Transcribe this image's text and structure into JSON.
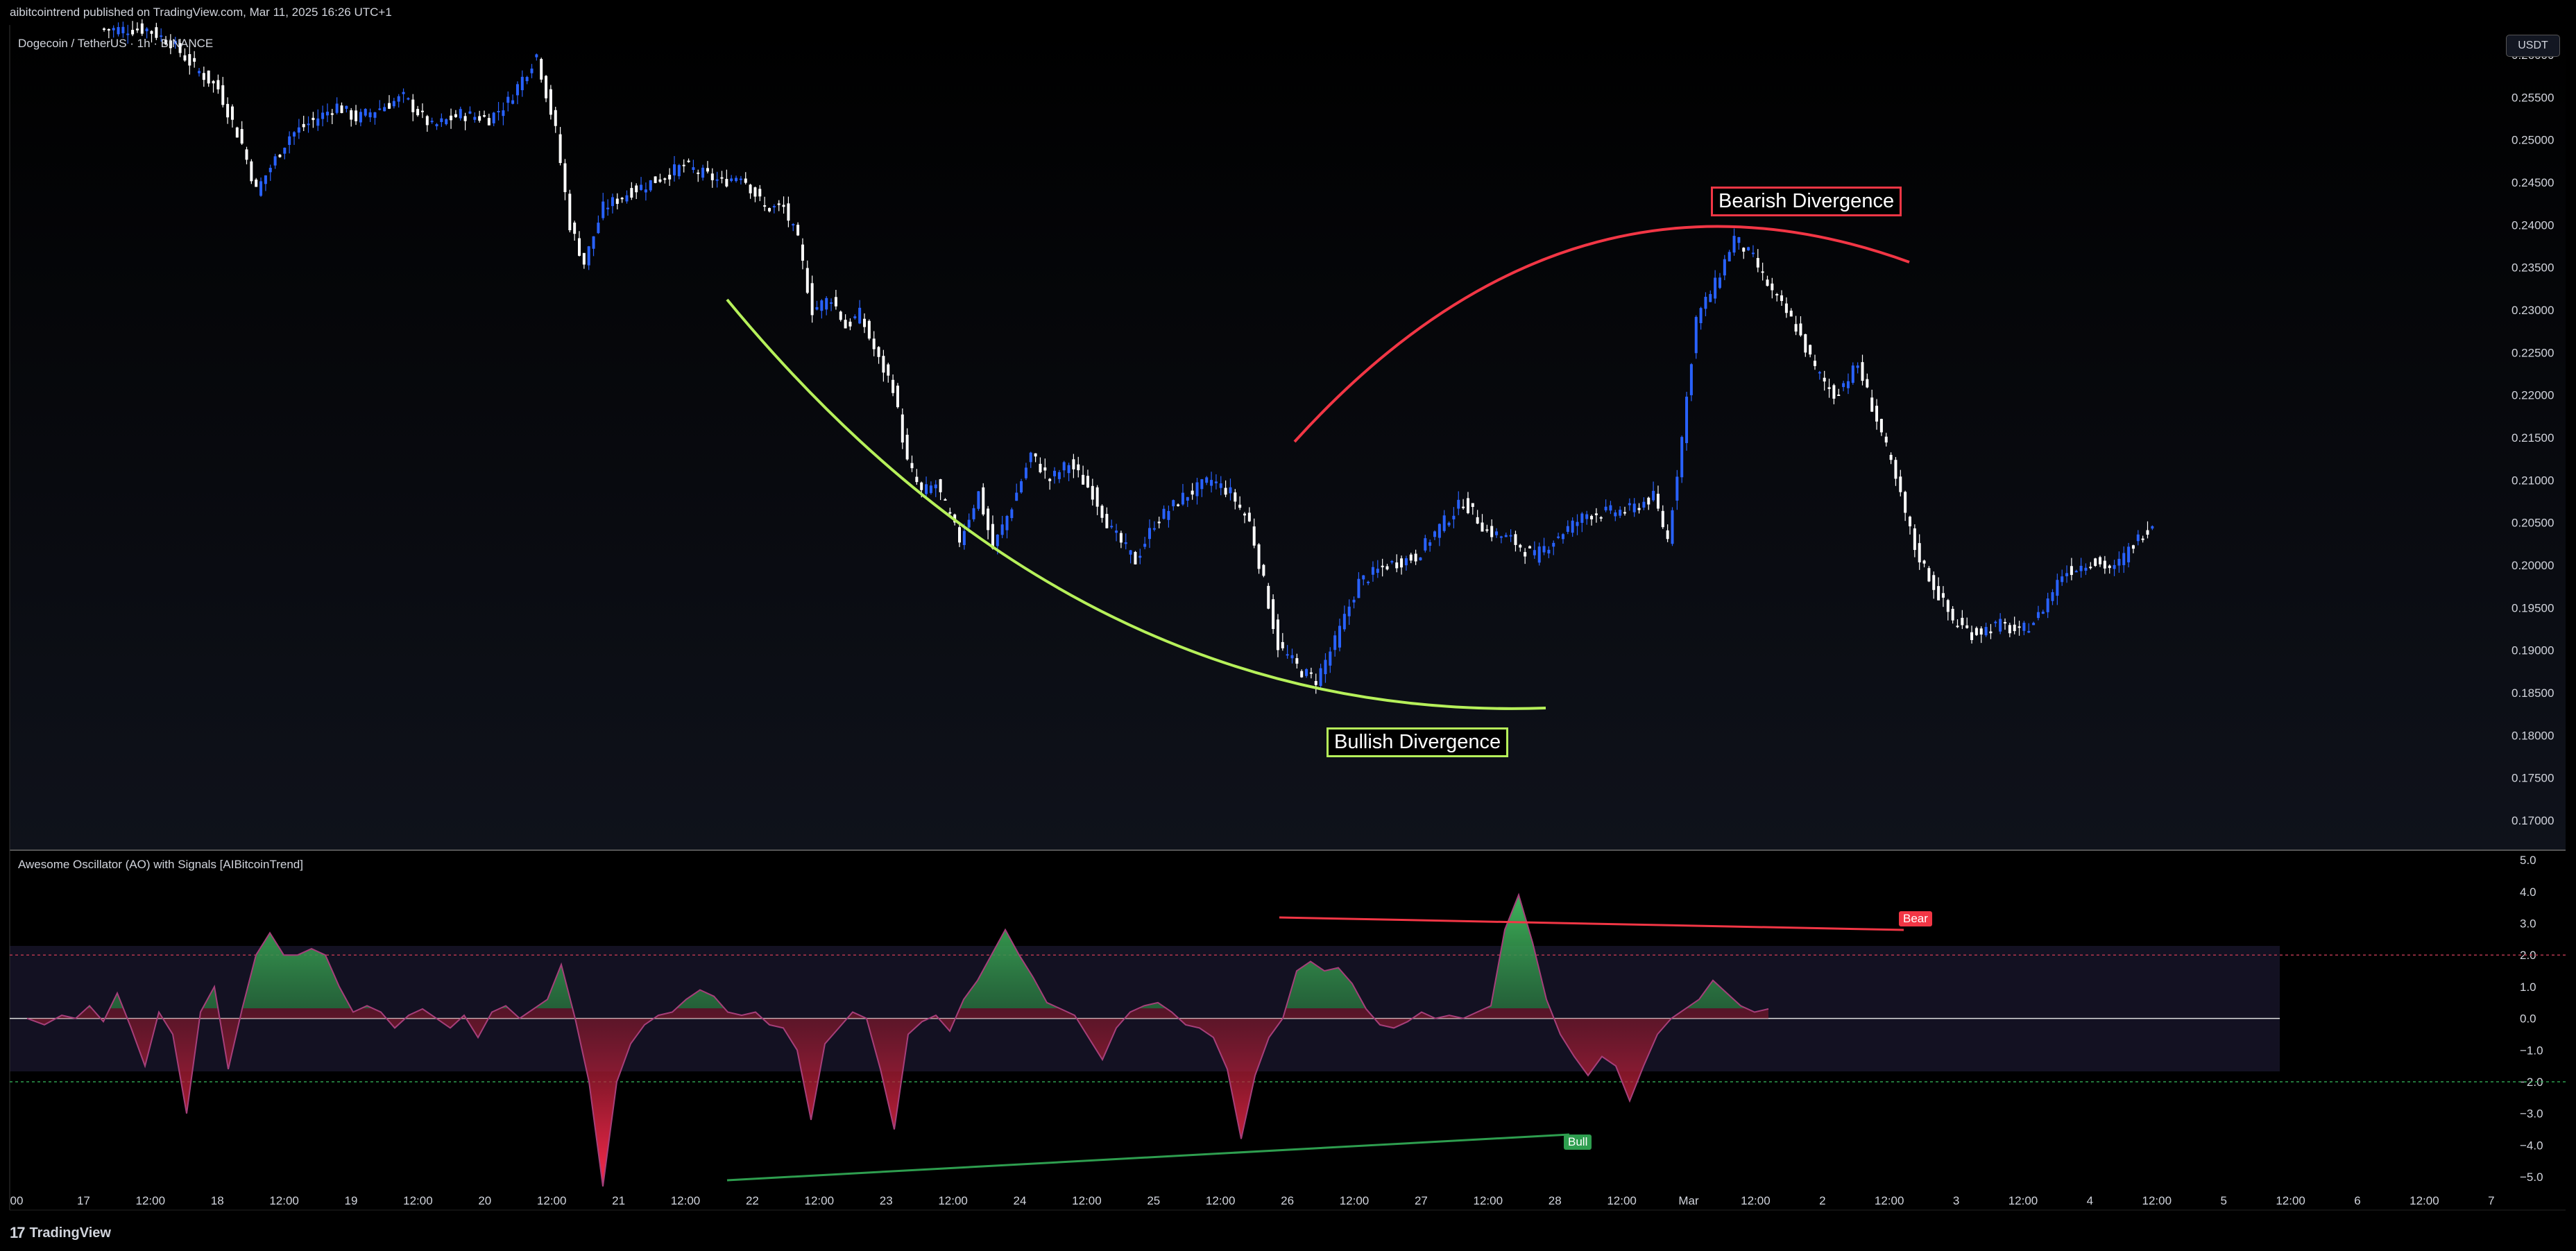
{
  "header": {
    "published": "aibitcointrend published on TradingView.com, Mar 11, 2025 16:26 UTC+1",
    "symbol": "Dogecoin / TetherUS · 1h · BINANCE",
    "currency_button": "USDT",
    "logo_text": "TradingView",
    "logo_mark": "17"
  },
  "annotations": {
    "bearish": "Bearish Divergence",
    "bullish": "Bullish Divergence"
  },
  "indicator": {
    "title": "Awesome Oscillator (AO) with Signals [AIBitcoinTrend]",
    "bear_label": "Bear",
    "bull_label": "Bull"
  },
  "colors": {
    "up_candle": "#2962ff",
    "down_candle": "#ffffff",
    "ao_positive": "#2e9e4f",
    "ao_negative": "#f23645",
    "bearish_curve": "#f23645",
    "bullish_curve": "#b6f05a"
  },
  "chart_data": [
    {
      "type": "candlestick",
      "title": "Dogecoin / TetherUS · 1h · BINANCE",
      "y_axis_ticks": [
        "0.26000",
        "0.25500",
        "0.25000",
        "0.24500",
        "0.24000",
        "0.23500",
        "0.23000",
        "0.22500",
        "0.22000",
        "0.21500",
        "0.21000",
        "0.20500",
        "0.20000",
        "0.19500",
        "0.19000",
        "0.18500",
        "0.18000",
        "0.17500",
        "0.17000"
      ],
      "ylim": [
        0.1665,
        0.2635
      ],
      "x_axis_ticks": [
        "00",
        "17",
        "12:00",
        "18",
        "12:00",
        "19",
        "12:00",
        "20",
        "12:00",
        "21",
        "12:00",
        "22",
        "12:00",
        "23",
        "12:00",
        "24",
        "12:00",
        "25",
        "12:00",
        "26",
        "12:00",
        "27",
        "12:00",
        "28",
        "12:00",
        "Mar",
        "12:00",
        "2",
        "12:00",
        "3",
        "12:00",
        "4",
        "12:00",
        "5",
        "12:00",
        "6",
        "12:00",
        "7"
      ],
      "price_path": [
        [
          0.263,
          10
        ],
        [
          0.2615,
          5
        ],
        [
          0.2585,
          5
        ],
        [
          0.256,
          5
        ],
        [
          0.2495,
          5
        ],
        [
          0.244,
          3
        ],
        [
          0.2505,
          7
        ],
        [
          0.254,
          10
        ],
        [
          0.2525,
          4
        ],
        [
          0.255,
          10
        ],
        [
          0.2515,
          6
        ],
        [
          0.253,
          6
        ],
        [
          0.2525,
          6
        ],
        [
          0.2545,
          4
        ],
        [
          0.26,
          6
        ],
        [
          0.251,
          4
        ],
        [
          0.24,
          3
        ],
        [
          0.2355,
          3
        ],
        [
          0.242,
          4
        ],
        [
          0.244,
          6
        ],
        [
          0.2455,
          6
        ],
        [
          0.247,
          5
        ],
        [
          0.245,
          8
        ],
        [
          0.246,
          4
        ],
        [
          0.242,
          5
        ],
        [
          0.242,
          4
        ],
        [
          0.238,
          3
        ],
        [
          0.23,
          3
        ],
        [
          0.2315,
          4
        ],
        [
          0.228,
          3
        ],
        [
          0.2295,
          3
        ],
        [
          0.224,
          4
        ],
        [
          0.221,
          3
        ],
        [
          0.212,
          3
        ],
        [
          0.2085,
          3
        ],
        [
          0.2095,
          3
        ],
        [
          0.203,
          5
        ],
        [
          0.2085,
          4
        ],
        [
          0.202,
          3
        ],
        [
          0.207,
          4
        ],
        [
          0.213,
          4
        ],
        [
          0.21,
          4
        ],
        [
          0.212,
          4
        ],
        [
          0.2085,
          5
        ],
        [
          0.204,
          4
        ],
        [
          0.2005,
          5
        ],
        [
          0.205,
          4
        ],
        [
          0.208,
          6
        ],
        [
          0.21,
          6
        ],
        [
          0.2085,
          4
        ],
        [
          0.205,
          4
        ],
        [
          0.198,
          3
        ],
        [
          0.1905,
          3
        ],
        [
          0.1875,
          5
        ],
        [
          0.1865,
          3
        ],
        [
          0.191,
          4
        ],
        [
          0.198,
          5
        ],
        [
          0.2,
          6
        ],
        [
          0.201,
          6
        ],
        [
          0.2045,
          5
        ],
        [
          0.2075,
          5
        ],
        [
          0.204,
          5
        ],
        [
          0.203,
          5
        ],
        [
          0.201,
          5
        ],
        [
          0.2035,
          5
        ],
        [
          0.206,
          6
        ],
        [
          0.2065,
          9
        ],
        [
          0.208,
          5
        ],
        [
          0.203,
          3
        ],
        [
          0.215,
          3
        ],
        [
          0.229,
          3
        ],
        [
          0.233,
          4
        ],
        [
          0.2385,
          4
        ],
        [
          0.236,
          4
        ],
        [
          0.232,
          4
        ],
        [
          0.228,
          5
        ],
        [
          0.223,
          4
        ],
        [
          0.22,
          4
        ],
        [
          0.2235,
          5
        ],
        [
          0.2155,
          5
        ],
        [
          0.208,
          4
        ],
        [
          0.202,
          3
        ],
        [
          0.1975,
          4
        ],
        [
          0.1935,
          4
        ],
        [
          0.192,
          4
        ],
        [
          0.193,
          6
        ],
        [
          0.192,
          4
        ],
        [
          0.194,
          4
        ],
        [
          0.199,
          5
        ],
        [
          0.2005,
          6
        ],
        [
          0.1995,
          5
        ],
        [
          0.2025,
          4
        ],
        [
          0.205,
          4
        ]
      ]
    },
    {
      "type": "area",
      "title": "Awesome Oscillator (AO) with Signals [AIBitcoinTrend]",
      "y_axis_ticks": [
        "5.0",
        "4.0",
        "3.0",
        "2.0",
        "1.0",
        "0.0",
        "−1.0",
        "−2.0",
        "−3.0",
        "−4.0",
        "−5.0"
      ],
      "ylim": [
        -5.5,
        5.2
      ],
      "upper_band": 2.0,
      "lower_band": -2.0,
      "ao_path": [
        [
          0.0,
          25
        ],
        [
          -0.2,
          25
        ],
        [
          0.1,
          25
        ],
        [
          0.0,
          20
        ],
        [
          0.4,
          20
        ],
        [
          -0.1,
          20
        ],
        [
          0.8,
          20
        ],
        [
          -0.3,
          20
        ],
        [
          -1.5,
          20
        ],
        [
          0.2,
          20
        ],
        [
          -0.5,
          20
        ],
        [
          -3.0,
          20
        ],
        [
          0.2,
          20
        ],
        [
          1.0,
          20
        ],
        [
          -1.6,
          20
        ],
        [
          0.3,
          20
        ],
        [
          2.0,
          20
        ],
        [
          2.7,
          20
        ],
        [
          2.0,
          20
        ],
        [
          2.0,
          20
        ],
        [
          2.2,
          20
        ],
        [
          2.0,
          20
        ],
        [
          1.0,
          20
        ],
        [
          0.2,
          20
        ],
        [
          0.4,
          20
        ],
        [
          0.2,
          20
        ],
        [
          -0.3,
          20
        ],
        [
          0.1,
          20
        ],
        [
          0.3,
          20
        ],
        [
          0.0,
          20
        ],
        [
          -0.3,
          20
        ],
        [
          0.1,
          20
        ],
        [
          -0.6,
          20
        ],
        [
          0.2,
          20
        ],
        [
          0.4,
          20
        ],
        [
          0.0,
          20
        ],
        [
          0.3,
          20
        ],
        [
          0.6,
          20
        ],
        [
          1.7,
          20
        ],
        [
          0.0,
          20
        ],
        [
          -2.0,
          20
        ],
        [
          -5.3,
          20
        ],
        [
          -2.0,
          20
        ],
        [
          -0.8,
          20
        ],
        [
          -0.2,
          20
        ],
        [
          0.1,
          20
        ],
        [
          0.2,
          20
        ],
        [
          0.6,
          20
        ],
        [
          0.9,
          20
        ],
        [
          0.7,
          20
        ],
        [
          0.2,
          20
        ],
        [
          0.1,
          20
        ],
        [
          0.2,
          20
        ],
        [
          -0.2,
          20
        ],
        [
          -0.3,
          20
        ],
        [
          -1.0,
          20
        ],
        [
          -3.2,
          20
        ],
        [
          -0.8,
          20
        ],
        [
          -0.3,
          20
        ],
        [
          0.2,
          20
        ],
        [
          0.0,
          20
        ],
        [
          -1.6,
          20
        ],
        [
          -3.5,
          20
        ],
        [
          -0.5,
          20
        ],
        [
          -0.1,
          20
        ],
        [
          0.1,
          20
        ],
        [
          -0.4,
          20
        ],
        [
          0.6,
          20
        ],
        [
          1.2,
          20
        ],
        [
          2.0,
          20
        ],
        [
          2.8,
          20
        ],
        [
          2.0,
          20
        ],
        [
          1.3,
          20
        ],
        [
          0.5,
          20
        ],
        [
          0.3,
          20
        ],
        [
          0.1,
          20
        ],
        [
          -0.6,
          20
        ],
        [
          -1.3,
          20
        ],
        [
          -0.3,
          20
        ],
        [
          0.2,
          20
        ],
        [
          0.4,
          20
        ],
        [
          0.5,
          20
        ],
        [
          0.2,
          20
        ],
        [
          -0.2,
          20
        ],
        [
          -0.3,
          20
        ],
        [
          -0.6,
          20
        ],
        [
          -1.6,
          20
        ],
        [
          -3.8,
          20
        ],
        [
          -1.8,
          20
        ],
        [
          -0.6,
          20
        ],
        [
          0.0,
          20
        ],
        [
          1.5,
          20
        ],
        [
          1.8,
          20
        ],
        [
          1.5,
          20
        ],
        [
          1.6,
          20
        ],
        [
          1.1,
          20
        ],
        [
          0.3,
          20
        ],
        [
          -0.2,
          20
        ],
        [
          -0.3,
          20
        ],
        [
          -0.1,
          20
        ],
        [
          0.2,
          20
        ],
        [
          0.0,
          20
        ],
        [
          0.1,
          20
        ],
        [
          0.0,
          20
        ],
        [
          0.2,
          20
        ],
        [
          0.4,
          20
        ],
        [
          2.8,
          20
        ],
        [
          3.9,
          20
        ],
        [
          2.4,
          20
        ],
        [
          0.6,
          20
        ],
        [
          -0.5,
          20
        ],
        [
          -1.2,
          20
        ],
        [
          -1.8,
          20
        ],
        [
          -1.2,
          20
        ],
        [
          -1.5,
          20
        ],
        [
          -2.6,
          20
        ],
        [
          -1.5,
          20
        ],
        [
          -0.5,
          20
        ],
        [
          0.0,
          20
        ],
        [
          0.3,
          20
        ],
        [
          0.6,
          20
        ],
        [
          1.2,
          20
        ],
        [
          0.8,
          20
        ],
        [
          0.4,
          20
        ],
        [
          0.2,
          20
        ],
        [
          0.3,
          20
        ]
      ],
      "signals": [
        {
          "label": "Bear",
          "value": 2.6
        },
        {
          "label": "Bull",
          "value": -3.8
        }
      ],
      "divergence_lines": [
        {
          "color": "#f23645",
          "from": 2.9,
          "to": 2.55
        },
        {
          "color": "#2e9e4f",
          "from": -5.3,
          "to": -4.0
        }
      ]
    }
  ]
}
